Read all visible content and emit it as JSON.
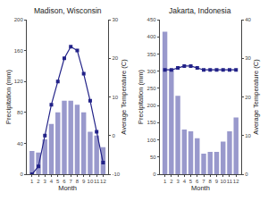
{
  "chart_data": [
    {
      "type": "bar",
      "title": "Madison, Wisconsin",
      "xlabel": "Month",
      "ylabel": "Precipitation (mm)",
      "y2label": "Average Temperature (C)",
      "x": [
        1,
        2,
        3,
        4,
        5,
        6,
        7,
        8,
        9,
        10,
        11,
        12
      ],
      "xlim": [
        0.2,
        12.8
      ],
      "xticks": [
        1,
        2,
        3,
        4,
        5,
        6,
        7,
        8,
        9,
        10,
        11,
        12
      ],
      "ylim": [
        0,
        200
      ],
      "yticks": [
        0,
        40,
        80,
        120,
        160,
        200
      ],
      "y2lim": [
        -10,
        30
      ],
      "y2ticks": [
        -10,
        0,
        10,
        20,
        30
      ],
      "grid": false,
      "series": [
        {
          "type": "bar",
          "color": "#9999cc",
          "values": [
            30,
            28,
            45,
            65,
            80,
            95,
            95,
            90,
            80,
            55,
            50,
            35
          ]
        },
        {
          "type": "line",
          "axis": "y2",
          "color": "#222288",
          "marker": "square",
          "values": [
            -10,
            -8,
            0,
            8,
            14,
            20,
            23,
            22,
            16,
            9,
            1,
            -7
          ]
        }
      ]
    },
    {
      "type": "bar",
      "title": "Jakarta, Indonesia",
      "xlabel": "Month",
      "ylabel": "Precipitation (mm)",
      "y2label": "Average Temperature (C)",
      "x": [
        1,
        2,
        3,
        4,
        5,
        6,
        7,
        8,
        9,
        10,
        11,
        12
      ],
      "xlim": [
        0.2,
        12.8
      ],
      "xticks": [
        1,
        2,
        3,
        4,
        5,
        6,
        7,
        8,
        9,
        10,
        11,
        12
      ],
      "ylim": [
        0,
        450
      ],
      "yticks": [
        0,
        50,
        100,
        150,
        200,
        250,
        300,
        350,
        400,
        450
      ],
      "y2lim": [
        0,
        40
      ],
      "y2ticks": [
        0,
        10,
        20,
        30,
        40
      ],
      "grid": false,
      "series": [
        {
          "type": "bar",
          "color": "#9999cc",
          "values": [
            415,
            305,
            228,
            130,
            125,
            105,
            60,
            65,
            65,
            95,
            125,
            165
          ]
        },
        {
          "type": "line",
          "axis": "y2",
          "color": "#222288",
          "marker": "square",
          "values": [
            27,
            27,
            27.5,
            28,
            28,
            27.5,
            27,
            27,
            27,
            27,
            27,
            27
          ]
        }
      ]
    }
  ]
}
